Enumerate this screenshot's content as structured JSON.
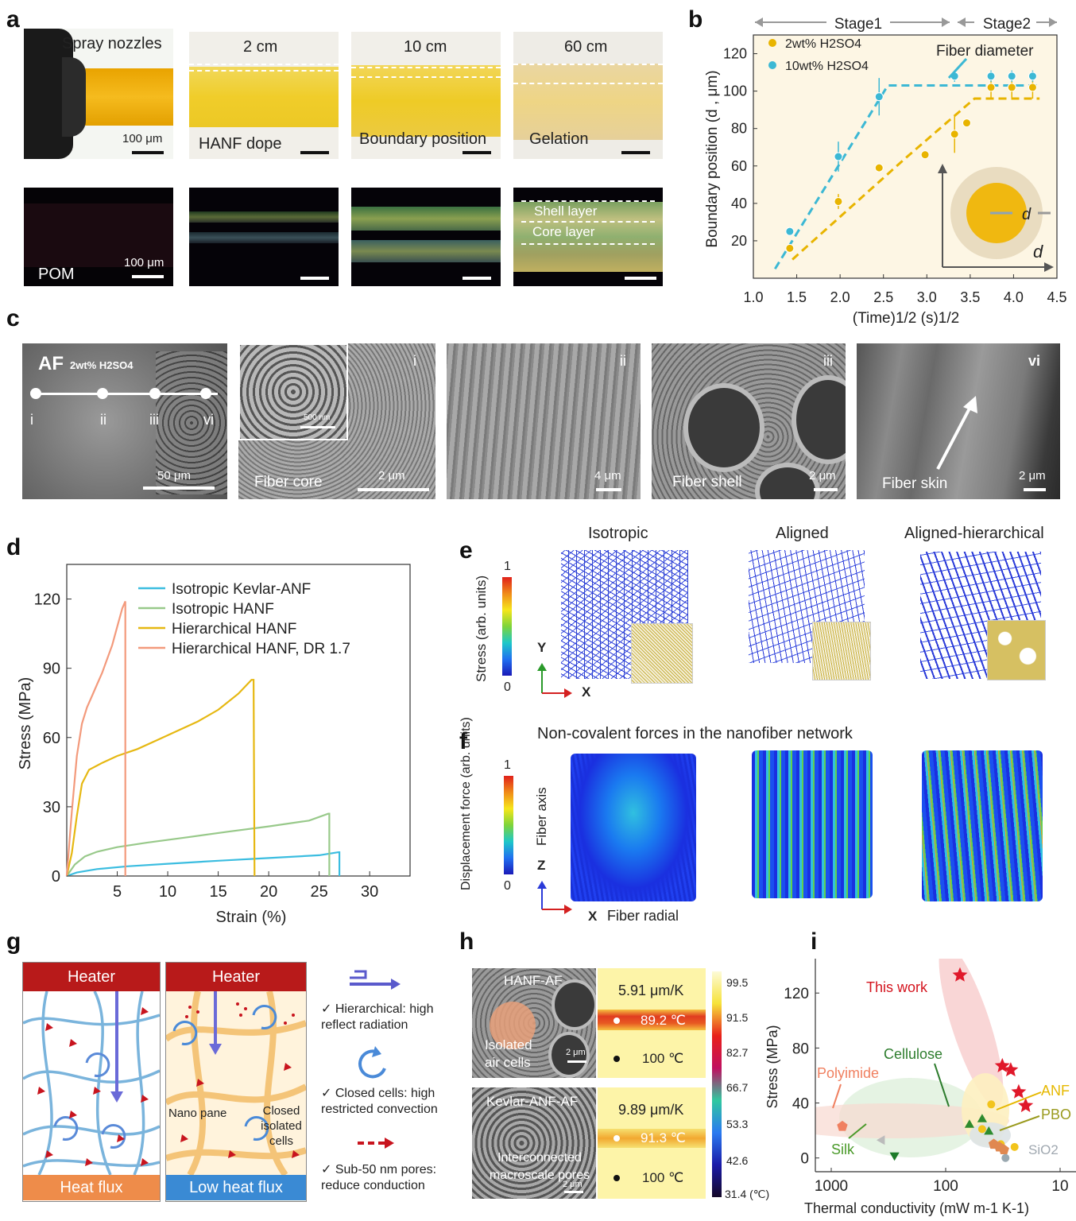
{
  "panels": {
    "a": "a",
    "b": "b",
    "c": "c",
    "d": "d",
    "e": "e",
    "f": "f",
    "g": "g",
    "h": "h",
    "i": "i"
  },
  "a": {
    "spray_nozzles": "Spray nozzles",
    "dist_2": "2 cm",
    "dist_10": "10 cm",
    "dist_60": "60 cm",
    "scale_100": "100 μm",
    "hanf_dope": "HANF dope",
    "boundary_position": "Boundary position",
    "gelation": "Gelation",
    "pom": "POM",
    "pom_scale": "100 μm",
    "shell_layer": "Shell layer",
    "core_layer": "Core layer"
  },
  "b": {
    "stage1": "Stage1",
    "stage2": "Stage2",
    "legend": [
      "2wt% H2SO4",
      "10wt% H2SO4"
    ],
    "fiber_diameter": "Fiber diameter",
    "ylabel": "Boundary position (d , μm)",
    "xlabel": "(Time)1/2 (s)1/2",
    "d": "d"
  },
  "c": {
    "af": "AF",
    "af_sub": "2wt% H2SO4",
    "points": [
      "i",
      "ii",
      "iii",
      "vi"
    ],
    "scale_50": "50 μm",
    "core_label": "Fiber core",
    "core_scale": "2 μm",
    "inset_scale": "500 nm",
    "tag_i": "i",
    "tag_ii": "ii",
    "scale_4": "4 μm",
    "tag_iii": "iii",
    "shell_label": "Fiber shell",
    "shell_scale": "2 μm",
    "tag_vi": "vi",
    "skin_label": "Fiber skin",
    "skin_scale": "2 μm"
  },
  "d": {
    "legend": [
      "Isotropic Kevlar-ANF",
      "Isotropic HANF",
      "Hierarchical HANF",
      "Hierarchical HANF, DR 1.7"
    ],
    "ylabel": "Stress (MPa)",
    "xlabel": "Strain (%)"
  },
  "e": {
    "titles": [
      "Isotropic",
      "Aligned",
      "Aligned-hierarchical"
    ],
    "colorbar_label": "Stress (arb. units)",
    "cb_max": "1",
    "cb_min": "0",
    "y": "Y",
    "x": "X"
  },
  "f": {
    "title": "Non-covalent forces in the nanofiber network",
    "colorbar_label": "Displacement force (arb. units)",
    "cb_max": "1",
    "cb_min": "0",
    "fiber_axis": "Fiber axis",
    "z": "Z",
    "x": "X",
    "fiber_radial": "Fiber radial"
  },
  "g": {
    "heater": "Heater",
    "heat_flux": "Heat flux",
    "low_heat_flux": "Low heat flux",
    "nano_pane": "Nano pane",
    "closed_cells": "Closed isolated cells",
    "legend": [
      "Hierarchical: high reflect radiation",
      "Closed cells: high restricted convection",
      "Sub-50 nm pores: reduce conduction"
    ]
  },
  "h": {
    "hanf_af": "HANF-AF",
    "isolated": "Isolated air cells",
    "scale": "2 μm",
    "kevlar_af": "Kevlar-ANF-AF",
    "interconnected": "Interconnected macroscale pores",
    "hanf_k": "5.91 μm/K",
    "hanf_t": "89.2 ℃",
    "base_t": "100 ℃",
    "kev_k": "9.89 μm/K",
    "kev_t": "91.3 ℃",
    "cb_ticks": [
      "99.5",
      "91.5",
      "82.7",
      "66.7",
      "53.3",
      "42.6",
      "31.4 (℃)"
    ]
  },
  "i": {
    "this_work": "This work",
    "cellulose": "Cellulose",
    "polyimide": "Polyimide",
    "silk": "Silk",
    "anf": "ANF",
    "pbo": "PBO",
    "sio2": "SiO2",
    "ylabel": "Stress (MPa)",
    "xlabel": "Thermal conductivity (mW m-1 K-1)"
  },
  "chart_data": [
    {
      "id": "b",
      "type": "scatter",
      "title": "",
      "xlabel": "(Time)^1/2 (s)^1/2",
      "ylabel": "Boundary position (d, μm)",
      "xlim": [
        1.0,
        4.5
      ],
      "ylim": [
        0,
        130
      ],
      "xticks": [
        "1.0",
        "1.5",
        "2.0",
        "2.5",
        "3.0",
        "3.5",
        "4.0",
        "4.5"
      ],
      "yticks": [
        "20",
        "40",
        "60",
        "80",
        "100",
        "120"
      ],
      "series": [
        {
          "name": "2wt% H2SO4",
          "color": "#e8b400",
          "x": [
            1.42,
            1.98,
            2.45,
            2.98,
            3.32,
            3.46,
            3.74,
            3.98,
            4.22
          ],
          "y": [
            16,
            41,
            59,
            66,
            77,
            83,
            102,
            102,
            102
          ],
          "err": [
            0,
            4,
            0,
            0,
            10,
            0,
            6,
            6,
            6
          ],
          "fit_x": [
            1.45,
            2.75,
            3.55,
            4.3
          ],
          "fit_y": [
            10,
            64,
            96,
            96
          ]
        },
        {
          "name": "10wt% H2SO4",
          "color": "#3cb8d4",
          "x": [
            1.42,
            1.98,
            2.45,
            3.32,
            3.74,
            3.98,
            4.22
          ],
          "y": [
            25,
            65,
            97,
            108,
            108,
            108,
            108
          ],
          "err": [
            0,
            8,
            10,
            3,
            3,
            3,
            3
          ],
          "fit_x": [
            1.25,
            2.55,
            3.45,
            4.3
          ],
          "fit_y": [
            5,
            103,
            103,
            103
          ]
        }
      ]
    },
    {
      "id": "d",
      "type": "line",
      "title": "",
      "xlabel": "Strain (%)",
      "ylabel": "Stress (MPa)",
      "xlim": [
        0,
        34
      ],
      "ylim": [
        0,
        135
      ],
      "xticks": [
        "5",
        "10",
        "15",
        "20",
        "25",
        "30"
      ],
      "yticks": [
        "0",
        "30",
        "60",
        "90",
        "120"
      ],
      "series": [
        {
          "name": "Isotropic Kevlar-ANF",
          "color": "#3bbde0",
          "x": [
            0,
            1,
            3,
            6,
            10,
            15,
            20,
            25,
            26.9,
            27,
            27
          ],
          "y": [
            0,
            1.5,
            3,
            4.2,
            5.3,
            6.6,
            7.8,
            9,
            10.3,
            10.3,
            0
          ]
        },
        {
          "name": "Isotropic HANF",
          "color": "#98c98a",
          "x": [
            0,
            0.8,
            1.8,
            3,
            5,
            8,
            12,
            16,
            20,
            24,
            25.9,
            26,
            26
          ],
          "y": [
            0,
            5,
            8.5,
            10.5,
            12.5,
            14.5,
            16.8,
            19.2,
            21.5,
            24,
            27,
            27,
            0
          ]
        },
        {
          "name": "Hierarchical HANF",
          "color": "#e6b812",
          "x": [
            0,
            0.5,
            1,
            1.5,
            2.2,
            3.5,
            5,
            7,
            9,
            11,
            13,
            15,
            17,
            18.3,
            18.5,
            18.6
          ],
          "y": [
            0,
            10,
            26,
            40,
            46,
            49,
            52,
            55,
            59,
            63,
            67,
            72,
            79,
            85,
            85,
            0
          ]
        },
        {
          "name": "Hierarchical HANF, DR 1.7",
          "color": "#f39a7c",
          "x": [
            0,
            0.5,
            1,
            1.5,
            2,
            2.5,
            3,
            3.5,
            4,
            4.5,
            5,
            5.5,
            5.8,
            5.8
          ],
          "y": [
            0,
            28,
            52,
            66,
            73,
            78,
            83,
            88,
            94,
            100,
            108,
            116,
            119,
            0
          ]
        }
      ]
    },
    {
      "id": "h",
      "type": "heatmap",
      "title": "",
      "colorbar_ticks": [
        "99.5",
        "91.5",
        "82.7",
        "66.7",
        "53.3",
        "42.6",
        "31.4 (℃)"
      ],
      "rows": [
        {
          "name": "HANF-AF",
          "expansion": "5.91 μm/K",
          "t_top": "89.2 ℃",
          "t_bottom": "100 ℃"
        },
        {
          "name": "Kevlar-ANF-AF",
          "expansion": "9.89 μm/K",
          "t_top": "91.3 ℃",
          "t_bottom": "100 ℃"
        }
      ]
    },
    {
      "id": "i",
      "type": "scatter",
      "title": "",
      "xlabel": "Thermal conductivity (mW m-1 K-1)",
      "ylabel": "Stress (MPa)",
      "xscale": "log-reversed",
      "xlim": [
        1000,
        10
      ],
      "ylim": [
        -10,
        145
      ],
      "xticks": [
        "1000",
        "100",
        "10"
      ],
      "yticks": [
        "0",
        "40",
        "80",
        "120"
      ],
      "series": [
        {
          "name": "This work",
          "color": "#e0182a",
          "marker": "star",
          "x": [
            75,
            32,
            27,
            23,
            20
          ],
          "y": [
            133,
            67,
            64,
            48,
            38
          ]
        },
        {
          "name": "Cellulose",
          "color": "#2e8b2e",
          "marker": "triangle",
          "x": [
            62,
            48,
            42
          ],
          "y": [
            24,
            28,
            19
          ]
        },
        {
          "name": "ANF",
          "color": "#f2c41c",
          "marker": "circle",
          "x": [
            48,
            40,
            33,
            25
          ],
          "y": [
            21,
            39,
            10,
            8
          ]
        },
        {
          "name": "PBO",
          "color": "#e08850",
          "marker": "pentagon",
          "x": [
            38,
            34,
            31
          ],
          "y": [
            10,
            8,
            6
          ]
        },
        {
          "name": "Polyimide",
          "color": "#f08060",
          "marker": "pentagon",
          "x": [
            800
          ],
          "y": [
            23
          ]
        },
        {
          "name": "Silk",
          "color": "#1d7a2a",
          "marker": "triangle-down",
          "x": [
            280
          ],
          "y": [
            2
          ]
        },
        {
          "name": "Silk-gray",
          "color": "#bbbbbb",
          "marker": "triangle-left",
          "x": [
            360
          ],
          "y": [
            13
          ]
        },
        {
          "name": "SiO2",
          "color": "#9aa8b0",
          "marker": "circle",
          "x": [
            30
          ],
          "y": [
            0
          ]
        }
      ]
    }
  ]
}
